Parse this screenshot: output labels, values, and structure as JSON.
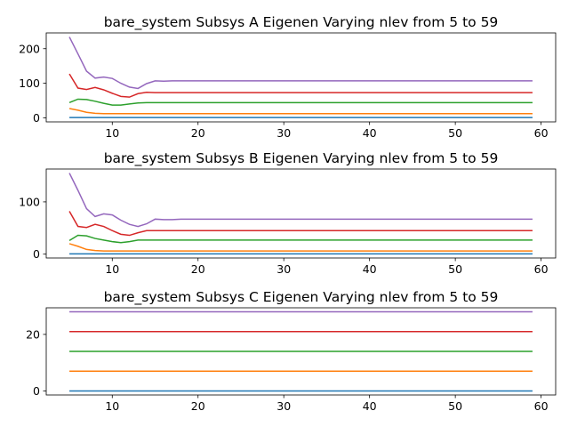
{
  "chart_data": [
    {
      "type": "line",
      "title": "bare_system Subsys A Eigenen Varying nlev from 5 to 59",
      "x": [
        5,
        6,
        7,
        8,
        9,
        10,
        11,
        12,
        13,
        14,
        15,
        16,
        17,
        18,
        19,
        20,
        21,
        22,
        23,
        24,
        25,
        26,
        27,
        28,
        29,
        30,
        31,
        32,
        33,
        34,
        35,
        36,
        37,
        38,
        39,
        40,
        41,
        42,
        43,
        44,
        45,
        46,
        47,
        48,
        49,
        50,
        51,
        52,
        53,
        54,
        55,
        56,
        57,
        58,
        59
      ],
      "xlim": [
        2.3,
        61.7
      ],
      "xticks": [
        10,
        20,
        30,
        40,
        50,
        60
      ],
      "ylim": [
        -11.7,
        245.7
      ],
      "yticks": [
        0,
        100,
        200
      ],
      "series": [
        {
          "color": "#1f77b4",
          "values": [
            1,
            1,
            1,
            1,
            1,
            1,
            1,
            1,
            1,
            1,
            1,
            1,
            1,
            1,
            1,
            1,
            1,
            1,
            1,
            1,
            1,
            1,
            1,
            1,
            1,
            1,
            1,
            1,
            1,
            1,
            1,
            1,
            1,
            1,
            1,
            1,
            1,
            1,
            1,
            1,
            1,
            1,
            1,
            1,
            1,
            1,
            1,
            1,
            1,
            1,
            1,
            1,
            1,
            1,
            1
          ]
        },
        {
          "color": "#ff7f0e",
          "values": [
            27,
            22,
            16,
            13,
            12,
            12,
            12,
            12,
            12,
            12,
            12,
            12,
            12,
            12,
            12,
            12,
            12,
            12,
            12,
            12,
            12,
            12,
            12,
            12,
            12,
            12,
            12,
            12,
            12,
            12,
            12,
            12,
            12,
            12,
            12,
            12,
            12,
            12,
            12,
            12,
            12,
            12,
            12,
            12,
            12,
            12,
            12,
            12,
            12,
            12,
            12,
            12,
            12,
            12,
            12
          ]
        },
        {
          "color": "#2ca02c",
          "values": [
            44,
            54,
            53,
            48,
            42,
            37,
            37,
            40,
            43,
            44,
            44,
            44,
            44,
            44,
            44,
            44,
            44,
            44,
            44,
            44,
            44,
            44,
            44,
            44,
            44,
            44,
            44,
            44,
            44,
            44,
            44,
            44,
            44,
            44,
            44,
            44,
            44,
            44,
            44,
            44,
            44,
            44,
            44,
            44,
            44,
            44,
            44,
            44,
            44,
            44,
            44,
            44,
            44,
            44,
            44
          ]
        },
        {
          "color": "#d62728",
          "values": [
            127,
            86,
            82,
            88,
            81,
            71,
            62,
            60,
            70,
            74,
            73,
            73,
            73,
            73,
            73,
            73,
            73,
            73,
            73,
            73,
            73,
            73,
            73,
            73,
            73,
            73,
            73,
            73,
            73,
            73,
            73,
            73,
            73,
            73,
            73,
            73,
            73,
            73,
            73,
            73,
            73,
            73,
            73,
            73,
            73,
            73,
            73,
            73,
            73,
            73,
            73,
            73,
            73,
            73,
            73
          ]
        },
        {
          "color": "#9467bd",
          "values": [
            234,
            185,
            135,
            115,
            118,
            114,
            100,
            89,
            85,
            99,
            107,
            106,
            107,
            107,
            107,
            107,
            107,
            107,
            107,
            107,
            107,
            107,
            107,
            107,
            107,
            107,
            107,
            107,
            107,
            107,
            107,
            107,
            107,
            107,
            107,
            107,
            107,
            107,
            107,
            107,
            107,
            107,
            107,
            107,
            107,
            107,
            107,
            107,
            107,
            107,
            107,
            107,
            107,
            107,
            107
          ]
        }
      ]
    },
    {
      "type": "line",
      "title": "bare_system Subsys B Eigenen Varying nlev from 5 to 59",
      "x": [
        5,
        6,
        7,
        8,
        9,
        10,
        11,
        12,
        13,
        14,
        15,
        16,
        17,
        18,
        19,
        20,
        21,
        22,
        23,
        24,
        25,
        26,
        27,
        28,
        29,
        30,
        31,
        32,
        33,
        34,
        35,
        36,
        37,
        38,
        39,
        40,
        41,
        42,
        43,
        44,
        45,
        46,
        47,
        48,
        49,
        50,
        51,
        52,
        53,
        54,
        55,
        56,
        57,
        58,
        59
      ],
      "xlim": [
        2.3,
        61.7
      ],
      "xticks": [
        10,
        20,
        30,
        40,
        50,
        60
      ],
      "ylim": [
        -7.3,
        162.8
      ],
      "yticks": [
        0,
        100
      ],
      "series": [
        {
          "color": "#1f77b4",
          "values": [
            0.5,
            0.5,
            0.5,
            0.5,
            0.5,
            0.5,
            0.5,
            0.5,
            0.5,
            0.5,
            0.5,
            0.5,
            0.5,
            0.5,
            0.5,
            0.5,
            0.5,
            0.5,
            0.5,
            0.5,
            0.5,
            0.5,
            0.5,
            0.5,
            0.5,
            0.5,
            0.5,
            0.5,
            0.5,
            0.5,
            0.5,
            0.5,
            0.5,
            0.5,
            0.5,
            0.5,
            0.5,
            0.5,
            0.5,
            0.5,
            0.5,
            0.5,
            0.5,
            0.5,
            0.5,
            0.5,
            0.5,
            0.5,
            0.5,
            0.5,
            0.5,
            0.5,
            0.5,
            0.5,
            0.5
          ]
        },
        {
          "color": "#ff7f0e",
          "values": [
            20,
            15,
            9,
            7,
            6,
            6,
            6,
            6,
            6,
            6,
            6,
            6,
            6,
            6,
            6,
            6,
            6,
            6,
            6,
            6,
            6,
            6,
            6,
            6,
            6,
            6,
            6,
            6,
            6,
            6,
            6,
            6,
            6,
            6,
            6,
            6,
            6,
            6,
            6,
            6,
            6,
            6,
            6,
            6,
            6,
            6,
            6,
            6,
            6,
            6,
            6,
            6,
            6,
            6,
            6
          ]
        },
        {
          "color": "#2ca02c",
          "values": [
            26,
            36,
            35,
            30,
            27,
            24,
            22,
            24,
            27,
            27,
            27,
            27,
            27,
            27,
            27,
            27,
            27,
            27,
            27,
            27,
            27,
            27,
            27,
            27,
            27,
            27,
            27,
            27,
            27,
            27,
            27,
            27,
            27,
            27,
            27,
            27,
            27,
            27,
            27,
            27,
            27,
            27,
            27,
            27,
            27,
            27,
            27,
            27,
            27,
            27,
            27,
            27,
            27,
            27,
            27
          ]
        },
        {
          "color": "#d62728",
          "values": [
            82,
            53,
            51,
            57,
            53,
            45,
            38,
            36,
            41,
            45,
            45,
            45,
            45,
            45,
            45,
            45,
            45,
            45,
            45,
            45,
            45,
            45,
            45,
            45,
            45,
            45,
            45,
            45,
            45,
            45,
            45,
            45,
            45,
            45,
            45,
            45,
            45,
            45,
            45,
            45,
            45,
            45,
            45,
            45,
            45,
            45,
            45,
            45,
            45,
            45,
            45,
            45,
            45,
            45,
            45
          ]
        },
        {
          "color": "#9467bd",
          "values": [
            155,
            122,
            87,
            72,
            77,
            75,
            65,
            57,
            53,
            58,
            67,
            66,
            66,
            67,
            67,
            67,
            67,
            67,
            67,
            67,
            67,
            67,
            67,
            67,
            67,
            67,
            67,
            67,
            67,
            67,
            67,
            67,
            67,
            67,
            67,
            67,
            67,
            67,
            67,
            67,
            67,
            67,
            67,
            67,
            67,
            67,
            67,
            67,
            67,
            67,
            67,
            67,
            67,
            67,
            67
          ]
        }
      ]
    },
    {
      "type": "line",
      "title": "bare_system Subsys C Eigenen Varying nlev from 5 to 59",
      "x": [
        5,
        6,
        7,
        8,
        9,
        10,
        11,
        12,
        13,
        14,
        15,
        16,
        17,
        18,
        19,
        20,
        21,
        22,
        23,
        24,
        25,
        26,
        27,
        28,
        29,
        30,
        31,
        32,
        33,
        34,
        35,
        36,
        37,
        38,
        39,
        40,
        41,
        42,
        43,
        44,
        45,
        46,
        47,
        48,
        49,
        50,
        51,
        52,
        53,
        54,
        55,
        56,
        57,
        58,
        59
      ],
      "xlim": [
        2.3,
        61.7
      ],
      "xticks": [
        10,
        20,
        30,
        40,
        50,
        60
      ],
      "ylim": [
        -1.4,
        29.4
      ],
      "yticks": [
        0,
        20
      ],
      "series": [
        {
          "color": "#1f77b4",
          "values": [
            0,
            0,
            0,
            0,
            0,
            0,
            0,
            0,
            0,
            0,
            0,
            0,
            0,
            0,
            0,
            0,
            0,
            0,
            0,
            0,
            0,
            0,
            0,
            0,
            0,
            0,
            0,
            0,
            0,
            0,
            0,
            0,
            0,
            0,
            0,
            0,
            0,
            0,
            0,
            0,
            0,
            0,
            0,
            0,
            0,
            0,
            0,
            0,
            0,
            0,
            0,
            0,
            0,
            0,
            0
          ]
        },
        {
          "color": "#ff7f0e",
          "values": [
            7,
            7,
            7,
            7,
            7,
            7,
            7,
            7,
            7,
            7,
            7,
            7,
            7,
            7,
            7,
            7,
            7,
            7,
            7,
            7,
            7,
            7,
            7,
            7,
            7,
            7,
            7,
            7,
            7,
            7,
            7,
            7,
            7,
            7,
            7,
            7,
            7,
            7,
            7,
            7,
            7,
            7,
            7,
            7,
            7,
            7,
            7,
            7,
            7,
            7,
            7,
            7,
            7,
            7,
            7
          ]
        },
        {
          "color": "#2ca02c",
          "values": [
            14,
            14,
            14,
            14,
            14,
            14,
            14,
            14,
            14,
            14,
            14,
            14,
            14,
            14,
            14,
            14,
            14,
            14,
            14,
            14,
            14,
            14,
            14,
            14,
            14,
            14,
            14,
            14,
            14,
            14,
            14,
            14,
            14,
            14,
            14,
            14,
            14,
            14,
            14,
            14,
            14,
            14,
            14,
            14,
            14,
            14,
            14,
            14,
            14,
            14,
            14,
            14,
            14,
            14,
            14
          ]
        },
        {
          "color": "#d62728",
          "values": [
            21,
            21,
            21,
            21,
            21,
            21,
            21,
            21,
            21,
            21,
            21,
            21,
            21,
            21,
            21,
            21,
            21,
            21,
            21,
            21,
            21,
            21,
            21,
            21,
            21,
            21,
            21,
            21,
            21,
            21,
            21,
            21,
            21,
            21,
            21,
            21,
            21,
            21,
            21,
            21,
            21,
            21,
            21,
            21,
            21,
            21,
            21,
            21,
            21,
            21,
            21,
            21,
            21,
            21,
            21
          ]
        },
        {
          "color": "#9467bd",
          "values": [
            28,
            28,
            28,
            28,
            28,
            28,
            28,
            28,
            28,
            28,
            28,
            28,
            28,
            28,
            28,
            28,
            28,
            28,
            28,
            28,
            28,
            28,
            28,
            28,
            28,
            28,
            28,
            28,
            28,
            28,
            28,
            28,
            28,
            28,
            28,
            28,
            28,
            28,
            28,
            28,
            28,
            28,
            28,
            28,
            28,
            28,
            28,
            28,
            28,
            28,
            28,
            28,
            28,
            28,
            28
          ]
        }
      ]
    }
  ]
}
